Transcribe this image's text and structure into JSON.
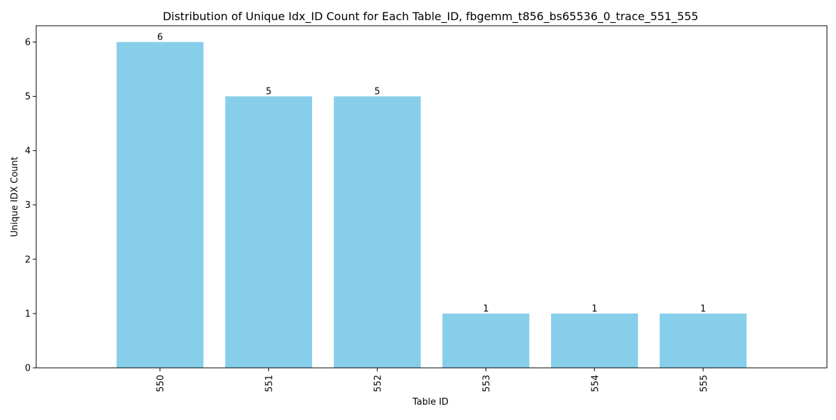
{
  "chart_data": {
    "type": "bar",
    "title": "Distribution of Unique Idx_ID Count for Each Table_ID, fbgemm_t856_bs65536_0_trace_551_555",
    "xlabel": "Table ID",
    "ylabel": "Unique IDX Count",
    "categories": [
      "550",
      "551",
      "552",
      "553",
      "554",
      "555"
    ],
    "values": [
      6,
      5,
      5,
      1,
      1,
      1
    ],
    "data_labels": [
      "6",
      "5",
      "5",
      "1",
      "1",
      "1"
    ],
    "ylim": [
      0,
      6.3
    ],
    "yticks": [
      0,
      1,
      2,
      3,
      4,
      5,
      6
    ],
    "ytick_labels": [
      "0",
      "1",
      "2",
      "3",
      "4",
      "5",
      "6"
    ],
    "xtick_rotation": "vertical",
    "bar_color": "#87CEEB",
    "grid": false,
    "legend": "none"
  }
}
